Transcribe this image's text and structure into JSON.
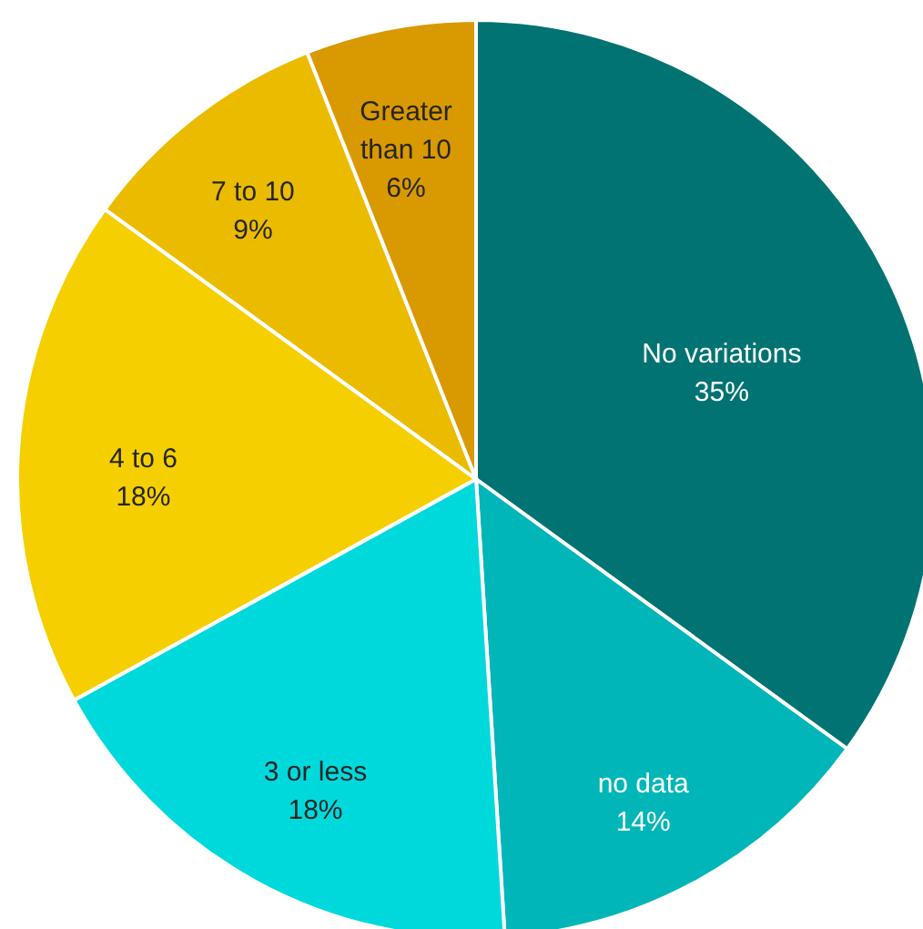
{
  "chart_data": {
    "type": "pie",
    "categories": [
      "No variations",
      "no data",
      "3 or less",
      "4 to 6",
      "7 to 10",
      "Greater than 10"
    ],
    "values": [
      35,
      14,
      18,
      18,
      9,
      6
    ],
    "colors": [
      "#007372",
      "#00b6b8",
      "#00d9dc",
      "#f5cf00",
      "#ebbb00",
      "#d99900"
    ],
    "value_labels": [
      "35%",
      "14%",
      "18%",
      "18%",
      "9%",
      "6%"
    ]
  }
}
